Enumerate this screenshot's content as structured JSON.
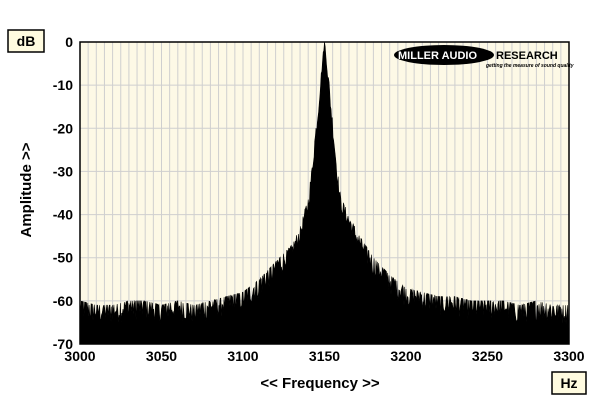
{
  "chart_data": {
    "type": "area",
    "title": "",
    "xlabel": "<< Frequency >>",
    "ylabel": "Amplitude >>",
    "x_unit": "Hz",
    "y_unit": "dB",
    "xlim": [
      3000,
      3300
    ],
    "ylim": [
      -70,
      0
    ],
    "x_ticks": [
      "3000",
      "3050",
      "3100",
      "3150",
      "3200",
      "3250",
      "3300"
    ],
    "y_ticks": [
      "0",
      "-10",
      "-20",
      "-30",
      "-40",
      "-50",
      "-60",
      "-70"
    ],
    "grid": true,
    "peak": {
      "frequency": 3150,
      "amplitude": 0
    },
    "series": [
      {
        "x": [
          3000,
          3010,
          3020,
          3030,
          3040,
          3050,
          3060,
          3070,
          3080,
          3090,
          3100,
          3110,
          3120,
          3130,
          3135,
          3140,
          3142,
          3144,
          3146,
          3148,
          3150,
          3152,
          3154,
          3156,
          3158,
          3160,
          3165,
          3170,
          3180,
          3190,
          3200,
          3210,
          3220,
          3230,
          3240,
          3250,
          3260,
          3270,
          3280,
          3290,
          3300
        ],
        "values": [
          -62,
          -63,
          -63,
          -62,
          -62,
          -63,
          -62,
          -63,
          -62,
          -61,
          -60,
          -57,
          -53,
          -49,
          -45,
          -38,
          -32,
          -24,
          -17,
          -8,
          0,
          -8,
          -16,
          -24,
          -32,
          -38,
          -42,
          -46,
          -52,
          -56,
          -59,
          -60,
          -61,
          -61,
          -62,
          -62,
          -62,
          -63,
          -62,
          -63,
          -63
        ]
      }
    ]
  },
  "logo": {
    "brand_main": "MILLER AUDIO",
    "brand_rest": "RESEARCH",
    "tagline": "getting the measure of sound quality"
  }
}
